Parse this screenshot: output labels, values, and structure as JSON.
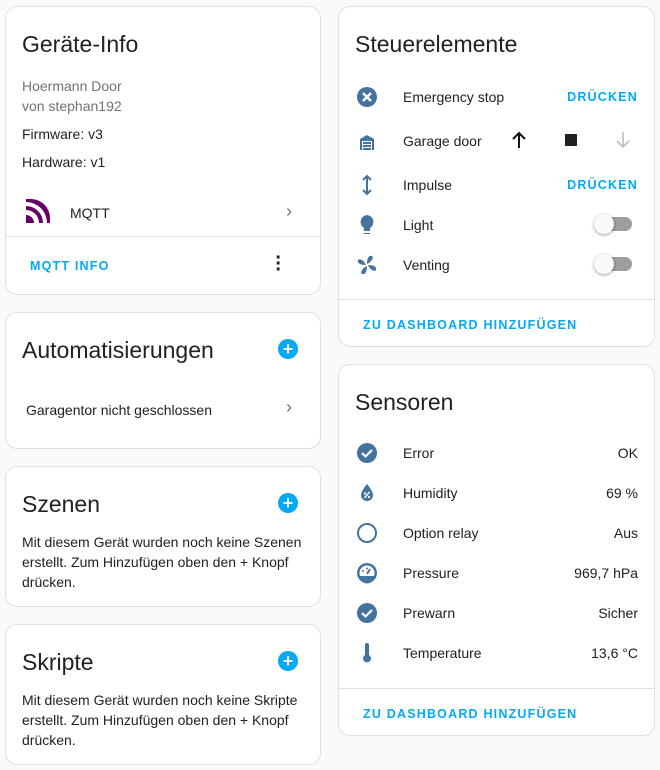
{
  "colors": {
    "accent": "#03a9f4",
    "icon": "#44739e",
    "mqtt": "#660066"
  },
  "device_info": {
    "title": "Geräte-Info",
    "model": "Hoermann Door",
    "manufacturer": "von stephan192",
    "firmware": "Firmware: v3",
    "hardware": "Hardware: v1",
    "integration": "MQTT",
    "integration_icon": "mqtt-logo",
    "action": "MQTT INFO"
  },
  "automations": {
    "title": "Automatisierungen",
    "items": [
      "Garagentor nicht geschlossen"
    ]
  },
  "scenes": {
    "title": "Szenen",
    "empty": "Mit diesem Gerät wurden noch keine Szenen erstellt. Zum Hinzufügen oben den + Knopf drücken."
  },
  "scripts": {
    "title": "Skripte",
    "empty": "Mit diesem Gerät wurden noch keine Skripte erstellt. Zum Hinzufügen oben den + Knopf drücken."
  },
  "controls": {
    "title": "Steuerelemente",
    "items": [
      {
        "name": "Emergency stop",
        "icon": "close-circle",
        "action": "DRÜCKEN"
      },
      {
        "name": "Garage door",
        "icon": "garage",
        "state": "up-enabled, down-disabled"
      },
      {
        "name": "Impulse",
        "icon": "arrow-up-down",
        "action": "DRÜCKEN"
      },
      {
        "name": "Light",
        "icon": "lightbulb",
        "on": false
      },
      {
        "name": "Venting",
        "icon": "fan",
        "on": false
      }
    ],
    "add": "ZU DASHBOARD HINZUFÜGEN"
  },
  "sensors": {
    "title": "Sensoren",
    "items": [
      {
        "name": "Error",
        "value": "OK",
        "icon": "check-circle"
      },
      {
        "name": "Humidity",
        "value": "69 %",
        "icon": "water-percent"
      },
      {
        "name": "Option relay",
        "value": "Aus",
        "icon": "circle-outline"
      },
      {
        "name": "Pressure",
        "value": "969,7 hPa",
        "icon": "gauge"
      },
      {
        "name": "Prewarn",
        "value": "Sicher",
        "icon": "check-circle"
      },
      {
        "name": "Temperature",
        "value": "13,6 °C",
        "icon": "thermometer"
      }
    ],
    "add": "ZU DASHBOARD HINZUFÜGEN"
  }
}
